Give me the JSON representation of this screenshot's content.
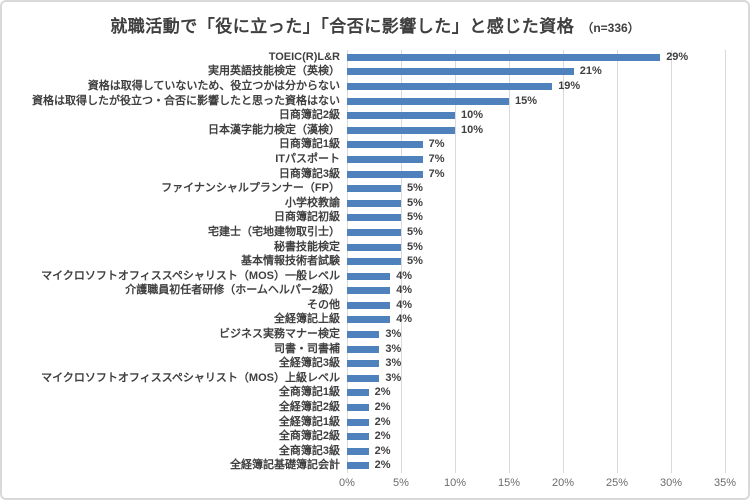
{
  "header": {
    "title": "就職活動で「役に立った」「合否に影響した」と感じた資格",
    "sample_label": "（n=336）"
  },
  "chart_data": {
    "type": "bar",
    "orientation": "horizontal",
    "title": "就職活動で「役に立った」「合否に影響した」と感じた資格",
    "sample_size_label": "（n=336）",
    "unit": "%",
    "categories": [
      "TOEIC(R)L&R",
      "実用英語技能検定（英検）",
      "資格は取得していないため、役立つかは分からない",
      "資格は取得したが役立つ・合否に影響したと思った資格はない",
      "日商簿記2級",
      "日本漢字能力検定（漢検）",
      "日商簿記1級",
      "ITパスポート",
      "日商簿記3級",
      "ファイナンシャルプランナー（FP）",
      "小学校教諭",
      "日商簿記初級",
      "宅建士（宅地建物取引士）",
      "秘書技能検定",
      "基本情報技術者試験",
      "マイクロソフトオフィススペシャリスト（MOS）一般レベル",
      "介護職員初任者研修（ホームヘルパー2級）",
      "その他",
      "全経簿記上級",
      "ビジネス実務マナー検定",
      "司書・司書補",
      "全経簿記3級",
      "マイクロソフトオフィススペシャリスト（MOS）上級レベル",
      "全商簿記1級",
      "全経簿記2級",
      "全経簿記1級",
      "全商簿記2級",
      "全商簿記3級",
      "全経簿記基礎簿記会計"
    ],
    "values": [
      29,
      21,
      19,
      15,
      10,
      10,
      7,
      7,
      7,
      5,
      5,
      5,
      5,
      5,
      5,
      4,
      4,
      4,
      4,
      3,
      3,
      3,
      3,
      2,
      2,
      2,
      2,
      2,
      2
    ],
    "x_ticks": [
      "0%",
      "5%",
      "10%",
      "15%",
      "20%",
      "25%",
      "30%",
      "35%"
    ],
    "xlim": [
      0,
      35
    ],
    "grid": "vertical",
    "legend": "none",
    "bar_color": "#4F81BD",
    "label_color": "#404040",
    "gridline_color": "#D9D9D9",
    "axis_tick_color": "#6B6B6B"
  }
}
